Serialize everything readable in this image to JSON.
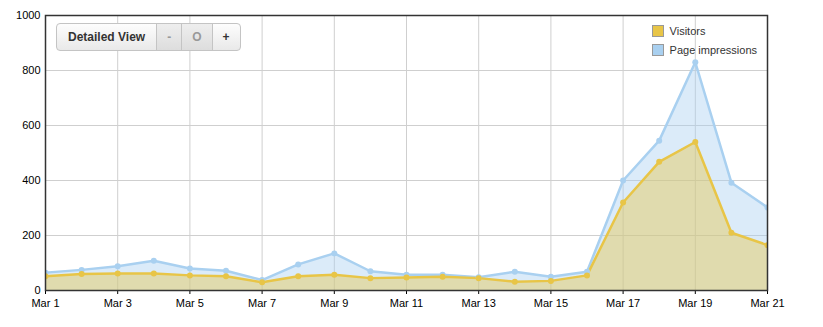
{
  "controls": {
    "label": "Detailed View",
    "buttons": [
      "-",
      "O",
      "+"
    ]
  },
  "chart_data": {
    "type": "area",
    "x": [
      1,
      2,
      3,
      4,
      5,
      6,
      7,
      8,
      9,
      10,
      11,
      12,
      13,
      14,
      15,
      16,
      17,
      18,
      19,
      20,
      21
    ],
    "series": [
      {
        "name": "Page impressions",
        "color": "#a9d0f0",
        "values": [
          65,
          75,
          88,
          108,
          80,
          72,
          38,
          95,
          135,
          70,
          57,
          57,
          48,
          68,
          50,
          68,
          400,
          545,
          830,
          392,
          302
        ]
      },
      {
        "name": "Visitors",
        "color": "#e8c547",
        "values": [
          52,
          60,
          62,
          62,
          55,
          52,
          30,
          52,
          57,
          45,
          47,
          50,
          45,
          32,
          35,
          55,
          320,
          468,
          540,
          210,
          165
        ]
      }
    ],
    "xlim": [
      1,
      21
    ],
    "xticks": [
      {
        "value": 1,
        "label": "Mar 1"
      },
      {
        "value": 3,
        "label": "Mar 3"
      },
      {
        "value": 5,
        "label": "Mar 5"
      },
      {
        "value": 7,
        "label": "Mar 7"
      },
      {
        "value": 9,
        "label": "Mar 9"
      },
      {
        "value": 11,
        "label": "Mar 11"
      },
      {
        "value": 13,
        "label": "Mar 13"
      },
      {
        "value": 15,
        "label": "Mar 15"
      },
      {
        "value": 17,
        "label": "Mar 17"
      },
      {
        "value": 19,
        "label": "Mar 19"
      },
      {
        "value": 21,
        "label": "Mar 21"
      }
    ],
    "ylim": [
      0,
      1000
    ],
    "yticks": [
      0,
      200,
      400,
      600,
      800,
      1000
    ],
    "grid": true,
    "legend": "top-right",
    "marker": "circle",
    "line_style": "solid"
  }
}
